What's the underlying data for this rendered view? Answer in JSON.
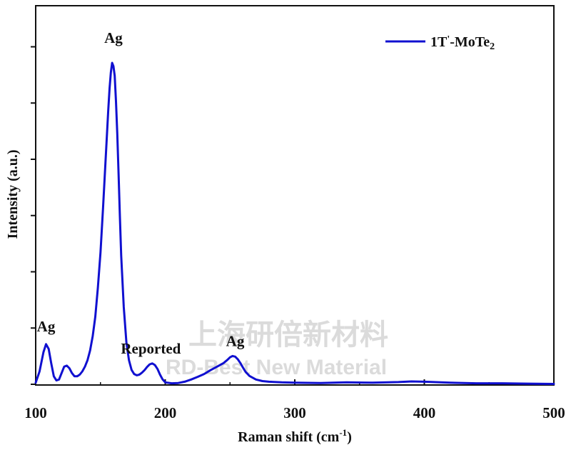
{
  "chart_data": {
    "type": "line",
    "title": "",
    "xlabel": "Raman shift (cm",
    "xlabel_sup": "-1",
    "xlabel_end": ")",
    "ylabel": "Intensity (a.u.)",
    "xlim": [
      100,
      500
    ],
    "ylim": [
      0,
      100
    ],
    "x_ticks": [
      100,
      200,
      300,
      400,
      500
    ],
    "y_ticks_unlabeled": [
      0,
      17.5,
      35,
      52.5,
      70,
      87.5,
      105
    ],
    "grid": false,
    "legend_position": "top-right",
    "series": [
      {
        "name": "1T'-MoTe2",
        "name_main": "1T",
        "name_prime": "'",
        "name_rest": "-MoTe",
        "name_sub": "2",
        "color": "#1010d0",
        "x": [
          100,
          103,
          106,
          108,
          110,
          112,
          114,
          116,
          118,
          120,
          122,
          124,
          126,
          128,
          130,
          132,
          134,
          136,
          138,
          140,
          142,
          144,
          146,
          148,
          150,
          152,
          154,
          156,
          157,
          158,
          159,
          160,
          161,
          162,
          163,
          164,
          165,
          166,
          168,
          170,
          172,
          174,
          176,
          178,
          180,
          182,
          184,
          186,
          188,
          190,
          192,
          194,
          196,
          198,
          200,
          205,
          210,
          215,
          220,
          225,
          230,
          235,
          240,
          245,
          248,
          250,
          252,
          254,
          256,
          258,
          260,
          262,
          265,
          270,
          275,
          280,
          290,
          300,
          320,
          340,
          360,
          380,
          390,
          400,
          420,
          440,
          460,
          480,
          500
        ],
        "y": [
          0.5,
          4,
          10,
          12.5,
          11,
          6.5,
          2.5,
          1.2,
          1.5,
          3.5,
          5.5,
          5.8,
          5,
          3.5,
          2.5,
          2.5,
          3,
          4,
          5.5,
          7.5,
          10.5,
          15,
          21,
          30,
          41,
          55,
          70,
          85,
          92,
          97,
          100,
          99,
          96,
          88,
          78,
          65,
          52,
          40,
          24,
          13,
          7.5,
          4.5,
          3.2,
          2.8,
          3,
          3.6,
          4.4,
          5.4,
          6.2,
          6.5,
          6,
          4.8,
          3,
          1.5,
          0.6,
          0.3,
          0.4,
          0.8,
          1.5,
          2.3,
          3.2,
          4.4,
          5.5,
          6.6,
          7.6,
          8.4,
          8.8,
          8.6,
          7.8,
          6.6,
          5.2,
          3.9,
          2.6,
          1.5,
          1,
          0.8,
          0.6,
          0.5,
          0.4,
          0.6,
          0.5,
          0.7,
          0.9,
          0.8,
          0.5,
          0.3,
          0.3,
          0.2,
          0.1
        ]
      }
    ],
    "annotations": [
      {
        "text": "Ag",
        "x": 108,
        "y": 12.5
      },
      {
        "text": "Ag",
        "x": 160,
        "y": 100
      },
      {
        "text": "Reported",
        "x": 190,
        "y": 6.5
      },
      {
        "text": "Ag",
        "x": 254,
        "y": 8.8
      }
    ]
  },
  "watermark": {
    "chinese": "上海研倍新材料",
    "english": "RD-Best New Material"
  }
}
